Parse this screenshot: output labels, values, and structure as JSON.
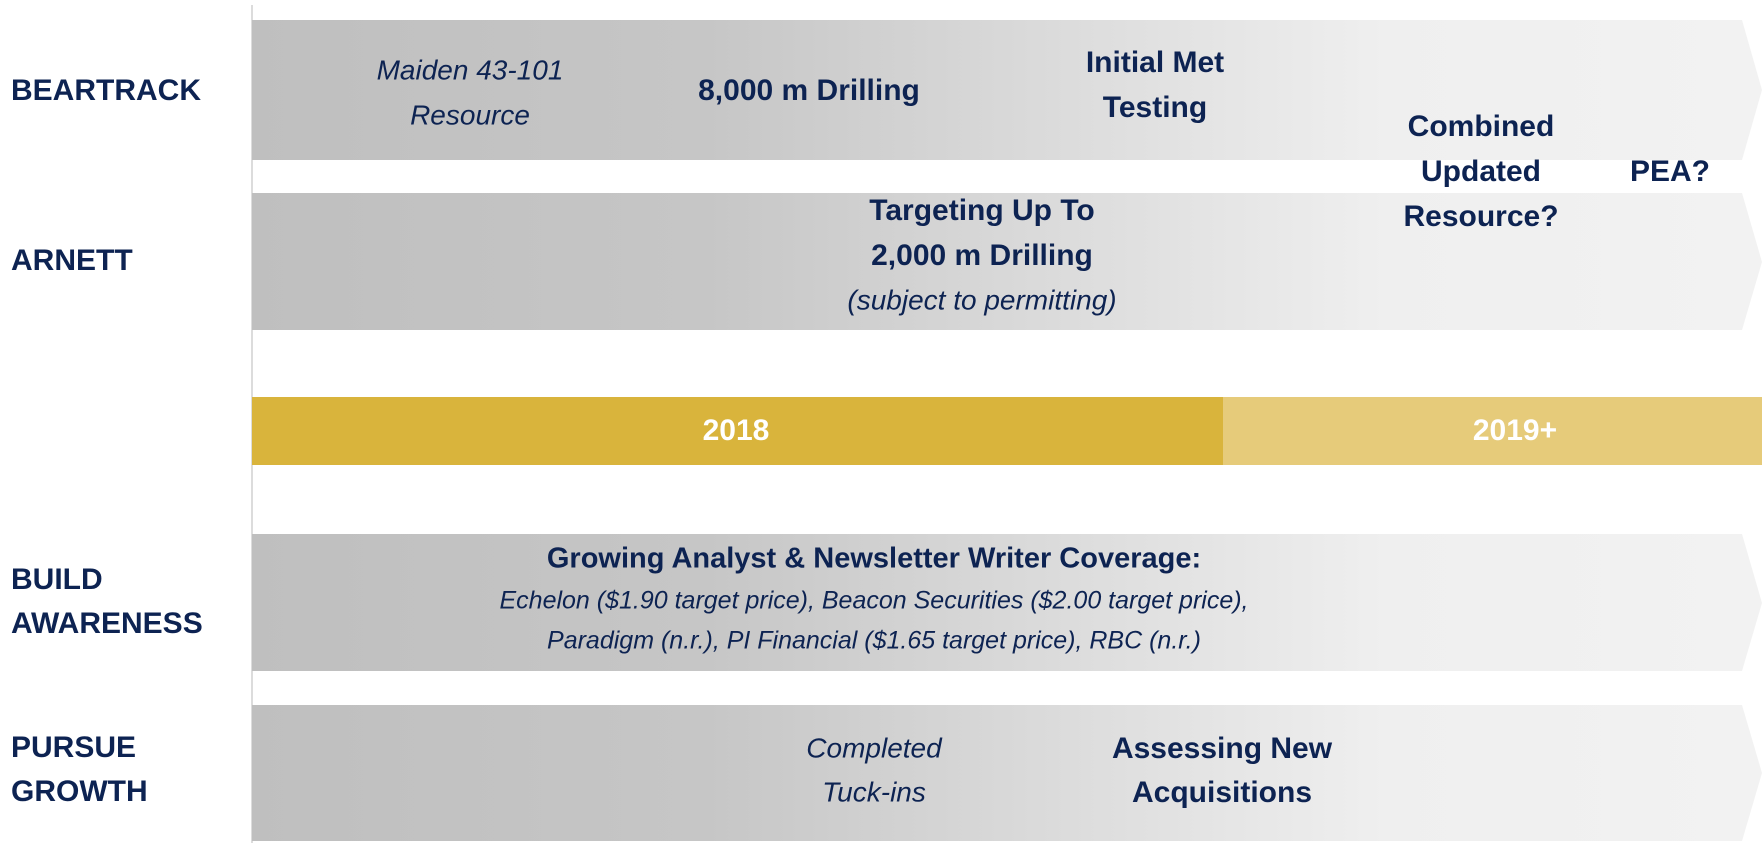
{
  "rows": [
    {
      "label": [
        "BEARTRACK"
      ]
    },
    {
      "label": [
        "ARNETT"
      ]
    },
    {
      "label": [
        "BUILD",
        "AWARENESS"
      ]
    },
    {
      "label": [
        "PURSUE",
        "GROWTH"
      ]
    }
  ],
  "beartrack": {
    "resource": [
      "Maiden 43-101",
      "Resource"
    ],
    "drilling": "8,000 m Drilling",
    "met": [
      "Initial Met",
      "Testing"
    ]
  },
  "combined": [
    "Combined",
    "Updated",
    "Resource?"
  ],
  "pea": "PEA?",
  "arnett": {
    "drilling": [
      "Targeting Up To",
      "2,000 m Drilling"
    ],
    "note": "(subject to permitting)"
  },
  "timeline": [
    "2018",
    "2019+"
  ],
  "awareness": {
    "title": "Growing Analyst & Newsletter Writer Coverage:",
    "lines": [
      "Echelon ($1.90 target price), Beacon Securities ($2.00 target price),",
      "Paradigm (n.r.), PI Financial ($1.65 target price), RBC (n.r.)"
    ]
  },
  "growth": {
    "completed": [
      "Completed",
      "Tuck-ins"
    ],
    "assessing": [
      "Assessing New",
      "Acquisitions"
    ]
  }
}
